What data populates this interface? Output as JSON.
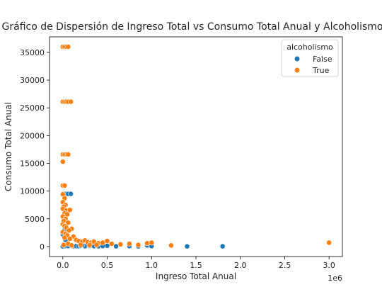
{
  "chart_data": {
    "type": "scatter",
    "title": "Gráfico de Dispersión de Ingreso Total vs Consumo Total Anual y Alcoholismo",
    "xlabel": "Ingreso Total Anual",
    "ylabel": "Consumo Total Anual",
    "x_offset_label": "1e6",
    "xlim": [
      -0.15,
      3.15
    ],
    "ylim": [
      -1800,
      37800
    ],
    "xticks": [
      0.0,
      0.5,
      1.0,
      1.5,
      2.0,
      2.5,
      3.0
    ],
    "xtick_labels": [
      "0.0",
      "0.5",
      "1.0",
      "1.5",
      "2.0",
      "2.5",
      "3.0"
    ],
    "yticks": [
      0,
      5000,
      10000,
      15000,
      20000,
      25000,
      30000,
      35000
    ],
    "ytick_labels": [
      "0",
      "5000",
      "10000",
      "15000",
      "20000",
      "25000",
      "30000",
      "35000"
    ],
    "grid": false,
    "legend": {
      "title": "alcoholismo",
      "placement": "top-right",
      "entries": [
        {
          "label": "False",
          "color": "#1f77b4"
        },
        {
          "label": "True",
          "color": "#ff7f0e"
        }
      ]
    },
    "series": [
      {
        "name": "False",
        "color": "#1f77b4",
        "points": [
          [
            0.0,
            9500
          ],
          [
            0.02,
            9500
          ],
          [
            0.04,
            9500
          ],
          [
            0.06,
            9500
          ],
          [
            0.09,
            9500
          ],
          [
            0.01,
            4800
          ],
          [
            0.02,
            3000
          ],
          [
            0.0,
            2200
          ],
          [
            0.03,
            1200
          ],
          [
            0.01,
            400
          ],
          [
            0.05,
            200
          ],
          [
            0.08,
            150
          ],
          [
            0.1,
            100
          ],
          [
            0.12,
            60
          ],
          [
            0.15,
            80
          ],
          [
            0.18,
            50
          ],
          [
            0.2,
            120
          ],
          [
            0.25,
            60
          ],
          [
            0.3,
            100
          ],
          [
            0.35,
            80
          ],
          [
            0.4,
            50
          ],
          [
            0.5,
            150
          ],
          [
            0.6,
            40
          ],
          [
            0.75,
            80
          ],
          [
            0.85,
            30
          ],
          [
            0.95,
            200
          ],
          [
            1.0,
            80
          ],
          [
            1.4,
            30
          ],
          [
            1.8,
            50
          ],
          [
            0.0,
            50
          ],
          [
            0.03,
            100
          ],
          [
            0.06,
            80
          ],
          [
            0.22,
            300
          ],
          [
            0.45,
            100
          ]
        ]
      },
      {
        "name": "True",
        "color": "#ff7f0e",
        "points": [
          [
            0.0,
            36000
          ],
          [
            0.02,
            36000
          ],
          [
            0.04,
            36000
          ],
          [
            0.06,
            36000
          ],
          [
            0.0,
            26100
          ],
          [
            0.02,
            26100
          ],
          [
            0.04,
            26100
          ],
          [
            0.06,
            26100
          ],
          [
            0.09,
            26100
          ],
          [
            0.0,
            16600
          ],
          [
            0.02,
            16600
          ],
          [
            0.04,
            16600
          ],
          [
            0.06,
            16600
          ],
          [
            0.0,
            15300
          ],
          [
            0.0,
            11000
          ],
          [
            0.02,
            11000
          ],
          [
            0.0,
            9400
          ],
          [
            0.02,
            8700
          ],
          [
            0.0,
            8000
          ],
          [
            0.03,
            7500
          ],
          [
            0.01,
            7200
          ],
          [
            0.0,
            6800
          ],
          [
            0.04,
            6500
          ],
          [
            0.08,
            6600
          ],
          [
            0.02,
            6000
          ],
          [
            0.05,
            5800
          ],
          [
            0.0,
            5400
          ],
          [
            0.03,
            5000
          ],
          [
            0.01,
            4600
          ],
          [
            0.06,
            4300
          ],
          [
            0.0,
            4000
          ],
          [
            0.02,
            3700
          ],
          [
            0.04,
            3400
          ],
          [
            0.1,
            3200
          ],
          [
            0.07,
            2900
          ],
          [
            0.0,
            2600
          ],
          [
            0.03,
            2300
          ],
          [
            0.05,
            2000
          ],
          [
            0.12,
            1800
          ],
          [
            0.02,
            1600
          ],
          [
            0.08,
            1400
          ],
          [
            0.15,
            1200
          ],
          [
            0.18,
            1000
          ],
          [
            0.22,
            900
          ],
          [
            0.25,
            1100
          ],
          [
            0.28,
            800
          ],
          [
            0.32,
            700
          ],
          [
            0.35,
            900
          ],
          [
            0.4,
            600
          ],
          [
            0.45,
            700
          ],
          [
            0.5,
            1000
          ],
          [
            0.55,
            500
          ],
          [
            0.65,
            400
          ],
          [
            0.75,
            500
          ],
          [
            0.85,
            300
          ],
          [
            0.95,
            600
          ],
          [
            1.0,
            700
          ],
          [
            1.22,
            200
          ],
          [
            3.0,
            700
          ],
          [
            0.01,
            300
          ],
          [
            0.06,
            500
          ],
          [
            0.1,
            200
          ],
          [
            0.2,
            300
          ],
          [
            0.3,
            250
          ],
          [
            0.38,
            300
          ]
        ]
      }
    ]
  }
}
